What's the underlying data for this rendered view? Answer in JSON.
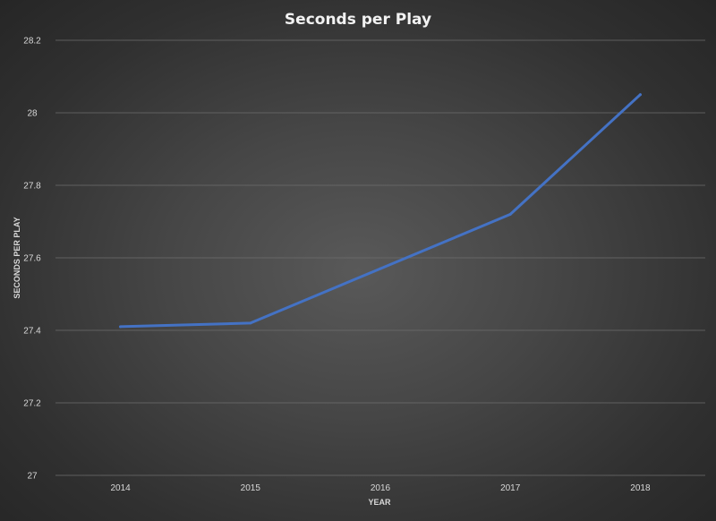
{
  "chart_data": {
    "type": "line",
    "title": "Seconds per Play",
    "xlabel": "YEAR",
    "ylabel": "SECONDS PER PLAY",
    "categories": [
      "2014",
      "2015",
      "2016",
      "2017",
      "2018"
    ],
    "series": [
      {
        "values": [
          27.41,
          27.42,
          27.57,
          27.72,
          28.05
        ]
      }
    ],
    "ylim": [
      27,
      28.2
    ],
    "yticks": [
      "27",
      "27.2",
      "27.4",
      "27.6",
      "27.8",
      "28",
      "28.2"
    ],
    "grid": true,
    "legend": "none",
    "colors": {
      "line": "#4472c4",
      "gridline": "#6e6e6e",
      "text": "#d9d9d9",
      "title": "#f2f2f2"
    }
  }
}
